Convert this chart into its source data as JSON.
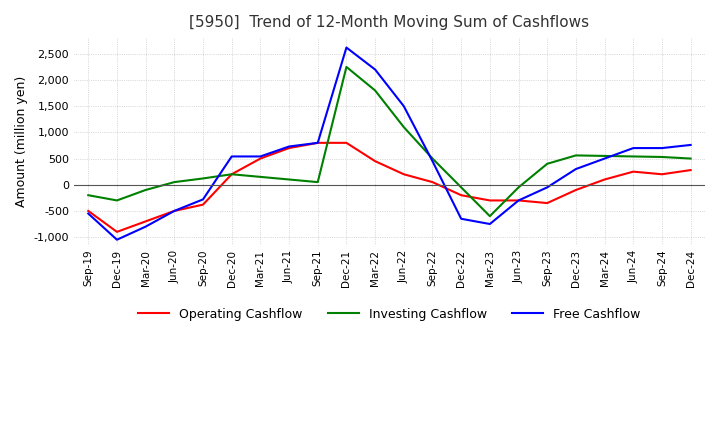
{
  "title": "[5950]  Trend of 12-Month Moving Sum of Cashflows",
  "ylabel": "Amount (million yen)",
  "ylim": [
    -1150,
    2800
  ],
  "yticks": [
    -1000,
    -500,
    0,
    500,
    1000,
    1500,
    2000,
    2500
  ],
  "x_labels": [
    "Sep-19",
    "Dec-19",
    "Mar-20",
    "Jun-20",
    "Sep-20",
    "Dec-20",
    "Mar-21",
    "Jun-21",
    "Sep-21",
    "Dec-21",
    "Mar-22",
    "Jun-22",
    "Sep-22",
    "Dec-22",
    "Mar-23",
    "Jun-23",
    "Sep-23",
    "Dec-23",
    "Mar-24",
    "Jun-24",
    "Sep-24",
    "Dec-24"
  ],
  "operating": [
    -500,
    -900,
    -700,
    -500,
    -380,
    200,
    500,
    700,
    800,
    800,
    450,
    200,
    50,
    -200,
    -300,
    -300,
    -350,
    -100,
    100,
    250,
    200,
    280
  ],
  "investing": [
    -200,
    -300,
    -100,
    50,
    120,
    200,
    150,
    100,
    50,
    2250,
    1800,
    1100,
    500,
    -50,
    -600,
    -50,
    400,
    560,
    550,
    540,
    530,
    500
  ],
  "free": [
    -550,
    -1050,
    -800,
    -500,
    -280,
    540,
    540,
    730,
    800,
    2620,
    2200,
    1500,
    450,
    -650,
    -750,
    -300,
    -50,
    300,
    500,
    700,
    700,
    760
  ],
  "colors": {
    "operating": "#ff0000",
    "investing": "#008000",
    "free": "#0000ff"
  },
  "legend_labels": [
    "Operating Cashflow",
    "Investing Cashflow",
    "Free Cashflow"
  ],
  "background_color": "#ffffff",
  "grid_color": "#bbbbbb"
}
